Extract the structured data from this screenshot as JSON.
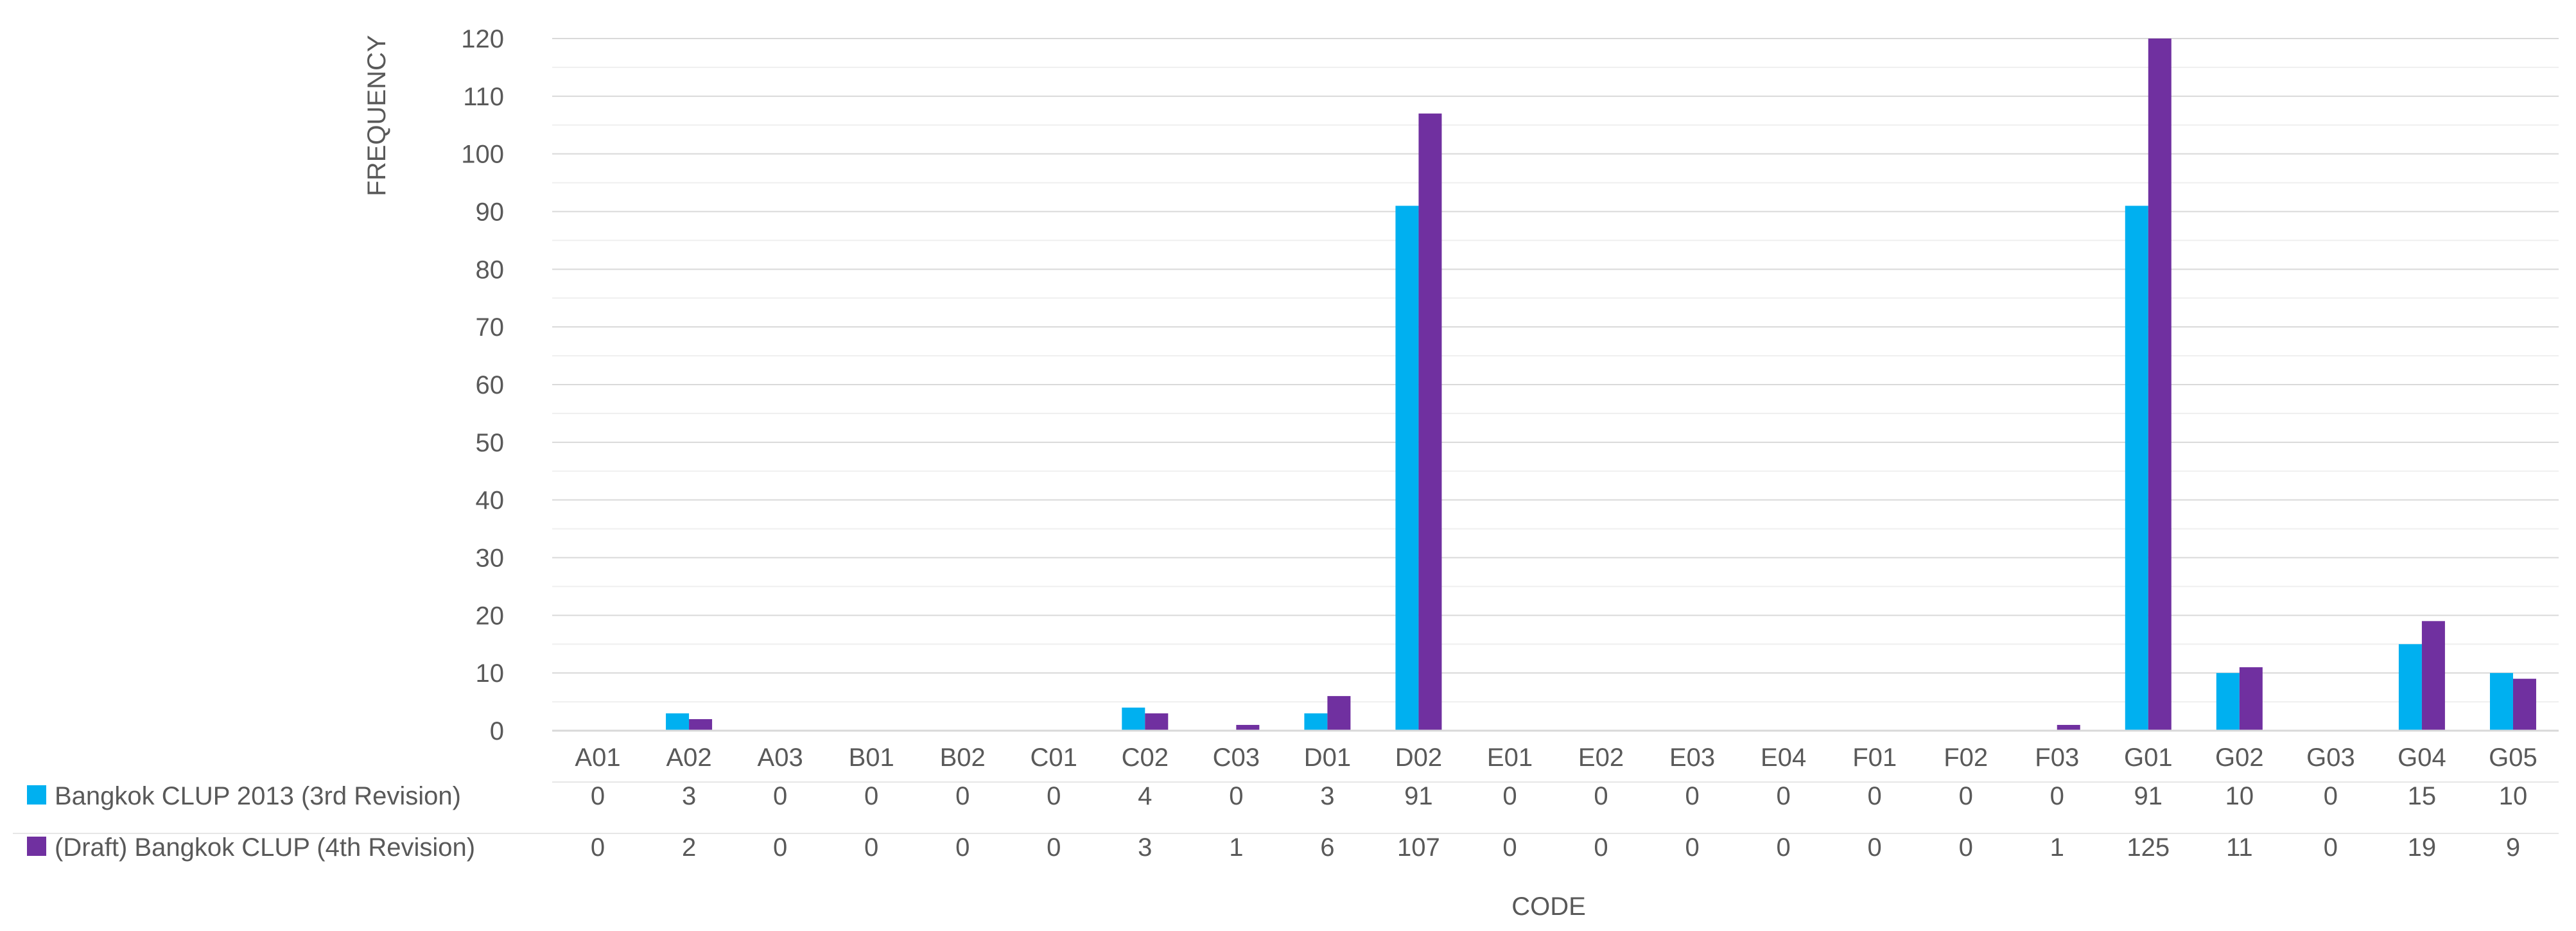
{
  "chart_data": {
    "type": "bar",
    "title": "",
    "xlabel": "CODE",
    "ylabel": "FREQUENCY",
    "ylim": [
      0,
      120
    ],
    "ytick_step": 10,
    "grid": true,
    "legend": "data-table-left",
    "categories": [
      "A01",
      "A02",
      "A03",
      "B01",
      "B02",
      "C01",
      "C02",
      "C03",
      "D01",
      "D02",
      "E01",
      "E02",
      "E03",
      "E04",
      "F01",
      "F02",
      "F03",
      "G01",
      "G02",
      "G03",
      "G04",
      "G05"
    ],
    "series": [
      {
        "name": "Bangkok CLUP 2013 (3rd Revision)",
        "color": "#00B0F0",
        "values": [
          0,
          3,
          0,
          0,
          0,
          0,
          4,
          0,
          3,
          91,
          0,
          0,
          0,
          0,
          0,
          0,
          0,
          91,
          10,
          0,
          15,
          10
        ]
      },
      {
        "name": "(Draft) Bangkok CLUP (4th Revision)",
        "color": "#7030A0",
        "values": [
          0,
          2,
          0,
          0,
          0,
          0,
          3,
          1,
          6,
          107,
          0,
          0,
          0,
          0,
          0,
          0,
          1,
          125,
          11,
          0,
          19,
          9
        ]
      }
    ]
  }
}
